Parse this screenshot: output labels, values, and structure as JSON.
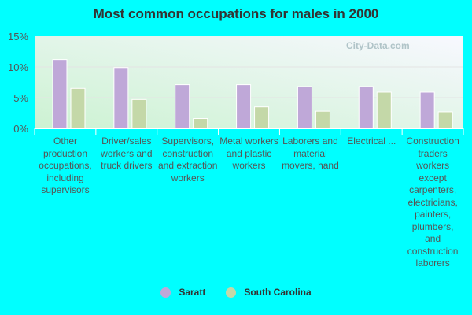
{
  "chart_data": {
    "type": "bar",
    "title": "Most common occupations for males in 2000",
    "categories": [
      "Other production occupations, including supervisors",
      "Driver/sales workers and truck drivers",
      "Supervisors, construction and extraction workers",
      "Metal workers and plastic workers",
      "Laborers and material movers, hand",
      "Electrical ...",
      "Construction traders workers except carpenters, electricians, painters, plumbers, and construction laborers"
    ],
    "series": [
      {
        "name": "Saratt",
        "color": "#bfa8d8",
        "values": [
          11.2,
          9.9,
          7.1,
          7.1,
          6.8,
          6.8,
          5.9
        ]
      },
      {
        "name": "South Carolina",
        "color": "#c4d8a8",
        "values": [
          6.5,
          4.7,
          1.6,
          3.5,
          2.8,
          5.9,
          2.7
        ]
      }
    ],
    "yticks": [
      "0%",
      "5%",
      "10%",
      "15%"
    ],
    "ylim": [
      0,
      15
    ],
    "grid": true,
    "legend": "bottom",
    "watermark": "City-Data.com"
  }
}
